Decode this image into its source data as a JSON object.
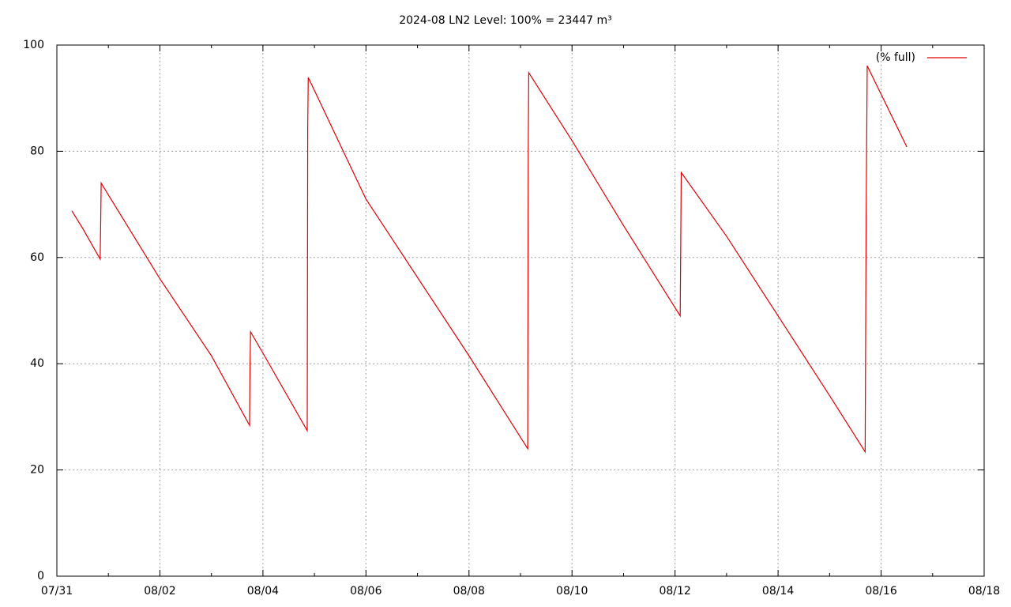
{
  "chart_data": {
    "type": "line",
    "title": "2024-08 LN2 Level: 100% = 23447 m³",
    "x": [
      0.29,
      0.5,
      0.84,
      0.85,
      0.86,
      2.0,
      3.0,
      3.74,
      3.75,
      3.76,
      4.0,
      4.86,
      4.87,
      4.88,
      6.0,
      8.0,
      9.14,
      9.15,
      9.16,
      10.0,
      11.0,
      12.1,
      12.11,
      12.12,
      13.0,
      14.0,
      15.0,
      15.69,
      15.71,
      15.73,
      16.5
    ],
    "series": [
      {
        "name": "(% full)",
        "color": "#e00000",
        "values": [
          68.8,
          65.5,
          59.7,
          66,
          74,
          56,
          41.5,
          28.4,
          40,
          46,
          42,
          27.4,
          85,
          93.9,
          71,
          41.5,
          24,
          80,
          94.8,
          82,
          66,
          49,
          62,
          76,
          64,
          49,
          34,
          23.4,
          68,
          96.1,
          80.8
        ]
      }
    ],
    "xlim": [
      0,
      18
    ],
    "xticks": [
      {
        "value": 0,
        "label": "07/31"
      },
      {
        "value": 2,
        "label": "08/02"
      },
      {
        "value": 4,
        "label": "08/04"
      },
      {
        "value": 6,
        "label": "08/06"
      },
      {
        "value": 8,
        "label": "08/08"
      },
      {
        "value": 10,
        "label": "08/10"
      },
      {
        "value": 12,
        "label": "08/12"
      },
      {
        "value": 14,
        "label": "08/14"
      },
      {
        "value": 16,
        "label": "08/16"
      },
      {
        "value": 18,
        "label": "08/18"
      }
    ],
    "ylim": [
      0,
      100
    ],
    "yticks": [
      0,
      20,
      40,
      60,
      80,
      100
    ],
    "grid": true,
    "legend": "top-right"
  }
}
